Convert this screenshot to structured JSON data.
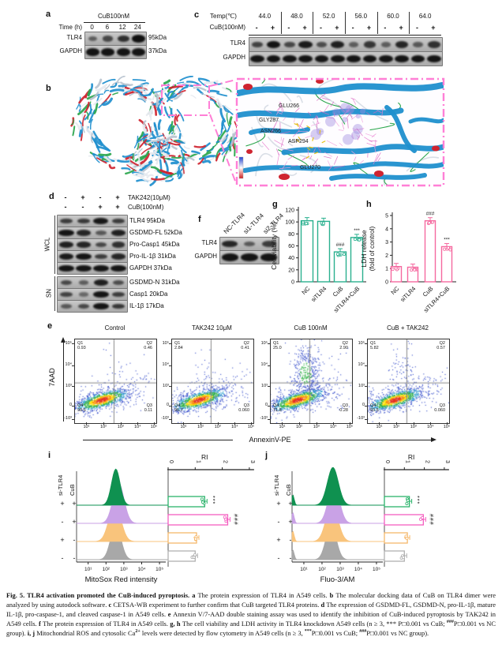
{
  "panels": {
    "a": {
      "label": "a",
      "treatment": "CuB100nM",
      "time_label": "Time (h)",
      "times": [
        "0",
        "6",
        "12",
        "24"
      ],
      "rows": [
        {
          "name": "TLR4",
          "size": "95kDa",
          "intensities": [
            0.3,
            0.5,
            0.72,
            1.0
          ]
        },
        {
          "name": "GAPDH",
          "size": "37kDa",
          "intensities": [
            0.95,
            0.95,
            0.95,
            0.95
          ]
        }
      ]
    },
    "c": {
      "label": "c",
      "temp_label": "Temp(℃)",
      "temps": [
        "44.0",
        "48.0",
        "52.0",
        "56.0",
        "60.0",
        "64.0"
      ],
      "cub_label": "CuB(100nM)",
      "signs": [
        "-",
        "+",
        "-",
        "+",
        "-",
        "+",
        "-",
        "+",
        "-",
        "+",
        "-",
        "+"
      ],
      "rows": [
        {
          "name": "TLR4",
          "intensities": [
            0.55,
            0.95,
            0.5,
            0.9,
            0.45,
            0.85,
            0.3,
            0.65,
            0.3,
            0.8,
            0.35,
            0.7
          ]
        },
        {
          "name": "GAPDH",
          "intensities": [
            0.95,
            0.95,
            0.95,
            0.95,
            0.95,
            0.95,
            0.95,
            0.95,
            0.95,
            0.95,
            0.95,
            0.95
          ]
        }
      ]
    },
    "b": {
      "label": "b",
      "residues": [
        "GLU266",
        "GLY287",
        "ASN266",
        "ASP294",
        "GLU270"
      ],
      "box_color": "#ff7fd6"
    },
    "d": {
      "label": "d",
      "header": [
        {
          "signs": [
            "-",
            "+",
            "-",
            "+"
          ],
          "label": "TAK242(10μM)"
        },
        {
          "signs": [
            "-",
            "-",
            "+",
            "+"
          ],
          "label": "CuB(100nM)"
        }
      ],
      "groups": [
        "WCL",
        "SN"
      ],
      "wcl_rows": [
        {
          "label": "TLR4 95kDa",
          "intensities": [
            0.6,
            0.62,
            0.92,
            0.6
          ]
        },
        {
          "label": "GSDMD-FL 52kDa",
          "intensities": [
            0.95,
            0.8,
            0.35,
            0.85
          ]
        },
        {
          "label": "Pro-Casp1 45kDa",
          "intensities": [
            0.85,
            0.8,
            0.5,
            0.7
          ]
        },
        {
          "label": "Pro-IL-1β 31kDa",
          "intensities": [
            0.9,
            0.95,
            0.6,
            0.8
          ]
        },
        {
          "label": "GAPDH 37kDa",
          "intensities": [
            0.95,
            0.95,
            0.95,
            0.95
          ]
        }
      ],
      "sn_rows": [
        {
          "label": "GSDMD-N 31kDa",
          "intensities": [
            0.5,
            0.3,
            0.85,
            0.45
          ]
        },
        {
          "label": "Casp1 20kDa",
          "intensities": [
            0.55,
            0.2,
            0.95,
            0.6
          ]
        },
        {
          "label": "IL-1β 17kDa",
          "intensities": [
            0.35,
            0.5,
            0.95,
            0.65
          ]
        }
      ]
    },
    "f": {
      "label": "f",
      "lanes": [
        "NC-TLR4",
        "si1-TLR4",
        "si2-TLR4"
      ],
      "rows": [
        {
          "name": "TLR4",
          "intensities": [
            0.8,
            0.35,
            0.6
          ]
        },
        {
          "name": "GAPDH",
          "intensities": [
            0.95,
            0.95,
            0.95
          ]
        }
      ]
    },
    "g": {
      "label": "g",
      "chart": {
        "type": "bar",
        "ylabel": "Cell viability (%)",
        "ylim": [
          0,
          120
        ],
        "yticks": [
          0,
          20,
          40,
          60,
          80,
          100,
          120
        ],
        "categories": [
          "NC",
          "siTLR4",
          "CuB",
          "siTLR4+CuB"
        ],
        "values": [
          102,
          101,
          50,
          74
        ],
        "sig": [
          "",
          "",
          "###",
          "***"
        ],
        "color": "#2ab08f"
      }
    },
    "h": {
      "label": "h",
      "chart": {
        "type": "bar",
        "ylabel": "LDH release",
        "ylabel2": "(fold of control)",
        "ylim": [
          0,
          5
        ],
        "yticks": [
          0,
          1,
          2,
          3,
          4,
          5
        ],
        "categories": [
          "NC",
          "siTLR4",
          "CuB",
          "siTLR4+CuB"
        ],
        "values": [
          1.15,
          1.1,
          4.6,
          2.65
        ],
        "sig": [
          "",
          "",
          "###",
          "***"
        ],
        "color": "#f5699f"
      }
    },
    "e": {
      "label": "e",
      "type": "scatter-flow",
      "ylabel": "7AAD",
      "xlabel": "AnnexinV-PE",
      "xticks": [
        "10¹",
        "10²",
        "10³",
        "10⁴",
        "10⁵"
      ],
      "yticks": [
        "10⁵",
        "10⁴",
        "10³",
        "0",
        "-10³"
      ],
      "plots": [
        {
          "title": "Control",
          "q1": "0.93",
          "q2": "0.46",
          "q3": "0.11",
          "q4": "98.5"
        },
        {
          "title": "TAK242 10μM",
          "q1": "2.84",
          "q2": "0.41",
          "q3": "0.060",
          "q4": "96.7"
        },
        {
          "title": "CuB 100nM",
          "q1": "25.0",
          "q2": "2.90",
          "q3": "0.28",
          "q4": "71.8"
        },
        {
          "title": "CuB + TAK242",
          "q1": "5.82",
          "q2": "0.57",
          "q3": "0.060",
          "q4": "93.5"
        }
      ]
    },
    "i": {
      "label": "i",
      "type": "histogram-ridge",
      "row_label_1": "si-TLR4",
      "row_label_2": "CuB",
      "xlabel": "MitoSox Red intensity",
      "xticks": [
        "10¹",
        "10²",
        "10³",
        "10⁴",
        "10⁵"
      ],
      "ri_label": "RI",
      "ri_ticks": [
        "0",
        "1",
        "2",
        "3"
      ],
      "rows": [
        {
          "si": "+",
          "cub": "+",
          "ri": 1.35,
          "sig": "***",
          "hist_color": "#0f9150",
          "bar_color": "#2bb36b",
          "peak": 2.55
        },
        {
          "si": "-",
          "cub": "+",
          "ri": 2.2,
          "sig": "###",
          "hist_color": "#c9a2e6",
          "bar_color": "#f45fc0",
          "peak": 2.7
        },
        {
          "si": "+",
          "cub": "-",
          "ri": 1.05,
          "sig": "",
          "hist_color": "#f9c47c",
          "bar_color": "#f5b86b",
          "peak": 2.5
        },
        {
          "si": "-",
          "cub": "-",
          "ri": 1.0,
          "sig": "",
          "hist_color": "#a8a8a8",
          "bar_color": "#b0b0b0",
          "peak": 2.55
        }
      ]
    },
    "j": {
      "label": "j",
      "type": "histogram-ridge",
      "row_label_1": "si-TLR4",
      "row_label_2": "CuB",
      "xlabel": "Fluo-3/AM",
      "xticks": [
        "10¹",
        "10²",
        "10³",
        "10⁴",
        "10⁵"
      ],
      "ri_label": "RI",
      "ri_ticks": [
        "0",
        "1",
        "2",
        "3"
      ],
      "rows": [
        {
          "si": "+",
          "cub": "+",
          "ri": 1.25,
          "sig": "***",
          "hist_color": "#0f9150",
          "bar_color": "#2bb36b",
          "peak": 2.6
        },
        {
          "si": "-",
          "cub": "+",
          "ri": 1.95,
          "sig": "###",
          "hist_color": "#c9a2e6",
          "bar_color": "#f45fc0",
          "peak": 2.65
        },
        {
          "si": "+",
          "cub": "-",
          "ri": 1.15,
          "sig": "",
          "hist_color": "#f9c47c",
          "bar_color": "#f5b86b",
          "peak": 2.55
        },
        {
          "si": "-",
          "cub": "-",
          "ri": 1.0,
          "sig": "",
          "hist_color": "#a8a8a8",
          "bar_color": "#b0b0b0",
          "peak": 2.5
        }
      ]
    }
  },
  "caption": {
    "segments": [
      {
        "b": 1,
        "t": "Fig. 5. TLR4 activation promoted the CuB-induced pyroptosis. "
      },
      {
        "b": 1,
        "t": "a "
      },
      {
        "t": "The protein expression of TLR4 in A549 cells. "
      },
      {
        "b": 1,
        "t": "b "
      },
      {
        "t": "The molecular docking data of CuB on TLR4 dimer were analyzed by using autodock software. "
      },
      {
        "b": 1,
        "t": "c "
      },
      {
        "t": "CETSA-WB experiment to further confirm that CuB targeted TLR4 proteins. "
      },
      {
        "b": 1,
        "t": "d "
      },
      {
        "t": "The expression of GSDMD-FL, GSDMD-N, pro-IL-1β, mature IL-1β, pro-caspase-1, and cleaved caspase-1 in A549 cells. "
      },
      {
        "b": 1,
        "t": "e "
      },
      {
        "t": "Annexin V/7-AAD double staining assay was used to identify the inhibition of CuB-induced pyroptosis by TAK242 in A549 cells. "
      },
      {
        "b": 1,
        "t": "f "
      },
      {
        "t": "The protein expression of TLR4 in A549 cells. "
      },
      {
        "b": 1,
        "t": "g, h "
      },
      {
        "t": "The cell viability and LDH activity in TLR4 knockdown A549 cells (n ≥ 3, *** P□0.001 vs CuB; "
      },
      {
        "sup": 1,
        "t": "###"
      },
      {
        "t": "P□0.001 vs NC group). "
      },
      {
        "b": 1,
        "t": "i, j "
      },
      {
        "t": "Mitochondrial ROS and cytosolic Ca"
      },
      {
        "sup": 1,
        "t": "2+"
      },
      {
        "t": " levels were detected by flow cytometry in A549 cells (n ≥ 3, "
      },
      {
        "sup": 1,
        "t": "***"
      },
      {
        "t": "P□0.001 vs CuB; "
      },
      {
        "sup": 1,
        "t": "###"
      },
      {
        "t": "P□0.001 vs NC group)."
      }
    ]
  }
}
